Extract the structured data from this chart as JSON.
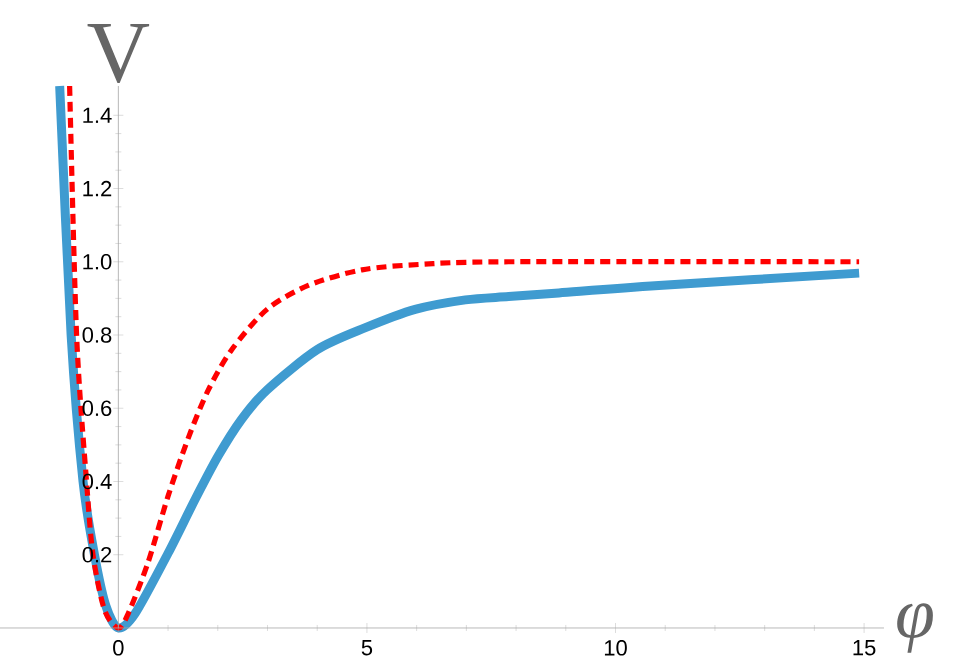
{
  "chart_data": {
    "type": "line",
    "xlabel": "φ",
    "ylabel": "V",
    "xlim": [
      -2.38,
      15.4
    ],
    "ylim": [
      0,
      1.48
    ],
    "xticks": [
      0,
      5,
      10,
      15
    ],
    "yticks": [
      0.2,
      0.4,
      0.6,
      0.8,
      {
        "value": 1,
        "label": "1.0"
      },
      1.2,
      1.4
    ],
    "grid": false,
    "series": [
      {
        "color": "#3f9bd0",
        "line_style": "solid",
        "x": [
          -1.18,
          -0.95,
          -0.71,
          -0.48,
          -0.25,
          0,
          0.34,
          1,
          1.54,
          2.01,
          2.48,
          2.99,
          4,
          4.97,
          5.97,
          6.98,
          7.85,
          8.86,
          10.87,
          14.9
        ],
        "values": [
          1.48,
          0.8,
          0.4,
          0.2,
          0.06,
          0,
          0.04,
          0.204,
          0.35,
          0.47,
          0.57,
          0.65,
          0.76,
          0.82,
          0.87,
          0.896,
          0.905,
          0.915,
          0.935,
          0.969
        ]
      },
      {
        "color": "#ff0000",
        "line_style": "dashed",
        "x": [
          -0.98,
          -0.84,
          -0.64,
          -0.51,
          -0.28,
          0,
          0.2,
          0.6,
          1,
          1.41,
          1.81,
          2.28,
          2.99,
          3.83,
          4.9,
          6.1,
          7.85,
          14.9
        ],
        "values": [
          1.48,
          0.8,
          0.4,
          0.2,
          0.05,
          0,
          0.04,
          0.18,
          0.36,
          0.52,
          0.65,
          0.76,
          0.87,
          0.936,
          0.978,
          0.993,
          1.0,
          1.0
        ]
      }
    ]
  }
}
